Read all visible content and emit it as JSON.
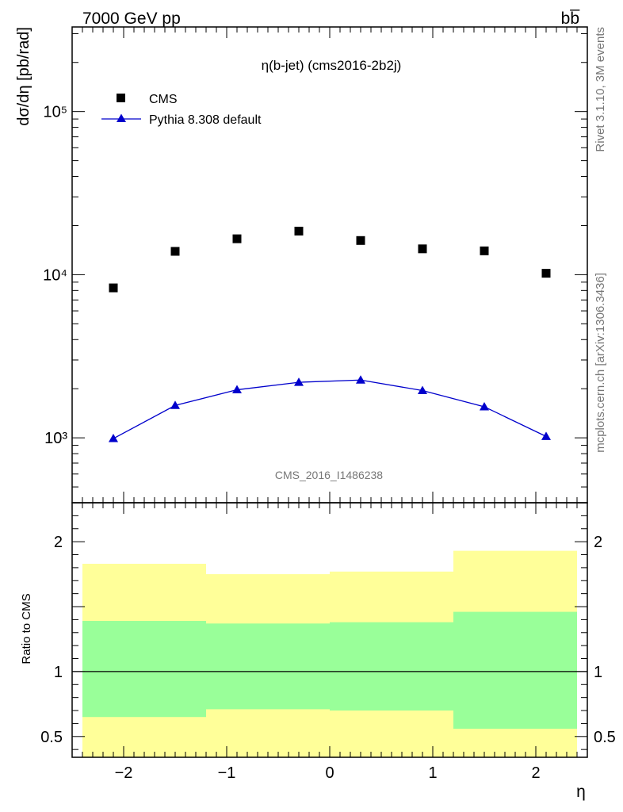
{
  "header": {
    "energy_label": "7000 GeV pp",
    "process_label": "bb̅",
    "side_rivet": "Rivet 3.1.10,  3M events",
    "side_mcplots": "mcplots.cern.ch [arXiv:1306.3436]",
    "watermark": "CMS_2016_I1486238"
  },
  "chart_data": [
    {
      "type": "scatter",
      "title": "η(b-jet) (cms2016-2b2j)",
      "ylabel": "dσ/dη [pb/rad]",
      "xlabel": "η",
      "yscale": "log",
      "xlim": [
        -2.5,
        2.5
      ],
      "ylim": [
        400,
        330000
      ],
      "y_ticks": [
        {
          "value": 1000,
          "label": "10³"
        },
        {
          "value": 10000,
          "label": "10⁴"
        },
        {
          "value": 100000,
          "label": "10⁵"
        }
      ],
      "legend_position": "top-left",
      "series": [
        {
          "name": "CMS",
          "marker": "square",
          "color": "#000000",
          "x": [
            -2.1,
            -1.5,
            -0.9,
            -0.3,
            0.3,
            0.9,
            1.5,
            2.1
          ],
          "y": [
            8300,
            13900,
            16600,
            18500,
            16200,
            14400,
            14000,
            10200
          ]
        },
        {
          "name": "Pythia 8.308 default",
          "marker": "triangle",
          "line": true,
          "color": "#0000cc",
          "x": [
            -2.1,
            -1.5,
            -0.9,
            -0.3,
            0.3,
            0.9,
            1.5,
            2.1
          ],
          "y": [
            990,
            1580,
            1970,
            2190,
            2260,
            1950,
            1550,
            1020
          ]
        }
      ]
    },
    {
      "type": "area",
      "ylabel": "Ratio to CMS",
      "xlabel": "η",
      "xlim": [
        -2.5,
        2.5
      ],
      "ylim": [
        0.34,
        2.3
      ],
      "x_ticks": [
        {
          "value": -2,
          "label": "−2"
        },
        {
          "value": -1,
          "label": "−1"
        },
        {
          "value": 0,
          "label": "0"
        },
        {
          "value": 1,
          "label": "1"
        },
        {
          "value": 2,
          "label": "2"
        }
      ],
      "y_ticks": [
        {
          "value": 0.5,
          "label": "0.5"
        },
        {
          "value": 1,
          "label": "1"
        },
        {
          "value": 2,
          "label": "2"
        }
      ],
      "reference_line": 1,
      "bins": [
        {
          "x_low": -2.4,
          "x_high": -1.2,
          "inner": [
            0.65,
            1.39
          ],
          "outer": [
            0.34,
            1.83
          ]
        },
        {
          "x_low": -1.2,
          "x_high": 0.0,
          "inner": [
            0.71,
            1.37
          ],
          "outer": [
            0.34,
            1.75
          ]
        },
        {
          "x_low": 0.0,
          "x_high": 1.2,
          "inner": [
            0.7,
            1.38
          ],
          "outer": [
            0.34,
            1.77
          ]
        },
        {
          "x_low": 1.2,
          "x_high": 2.4,
          "inner": [
            0.56,
            1.46
          ],
          "outer": [
            0.34,
            1.93
          ]
        }
      ],
      "colors": {
        "inner": "#99ff99",
        "outer": "#ffff99"
      }
    }
  ]
}
